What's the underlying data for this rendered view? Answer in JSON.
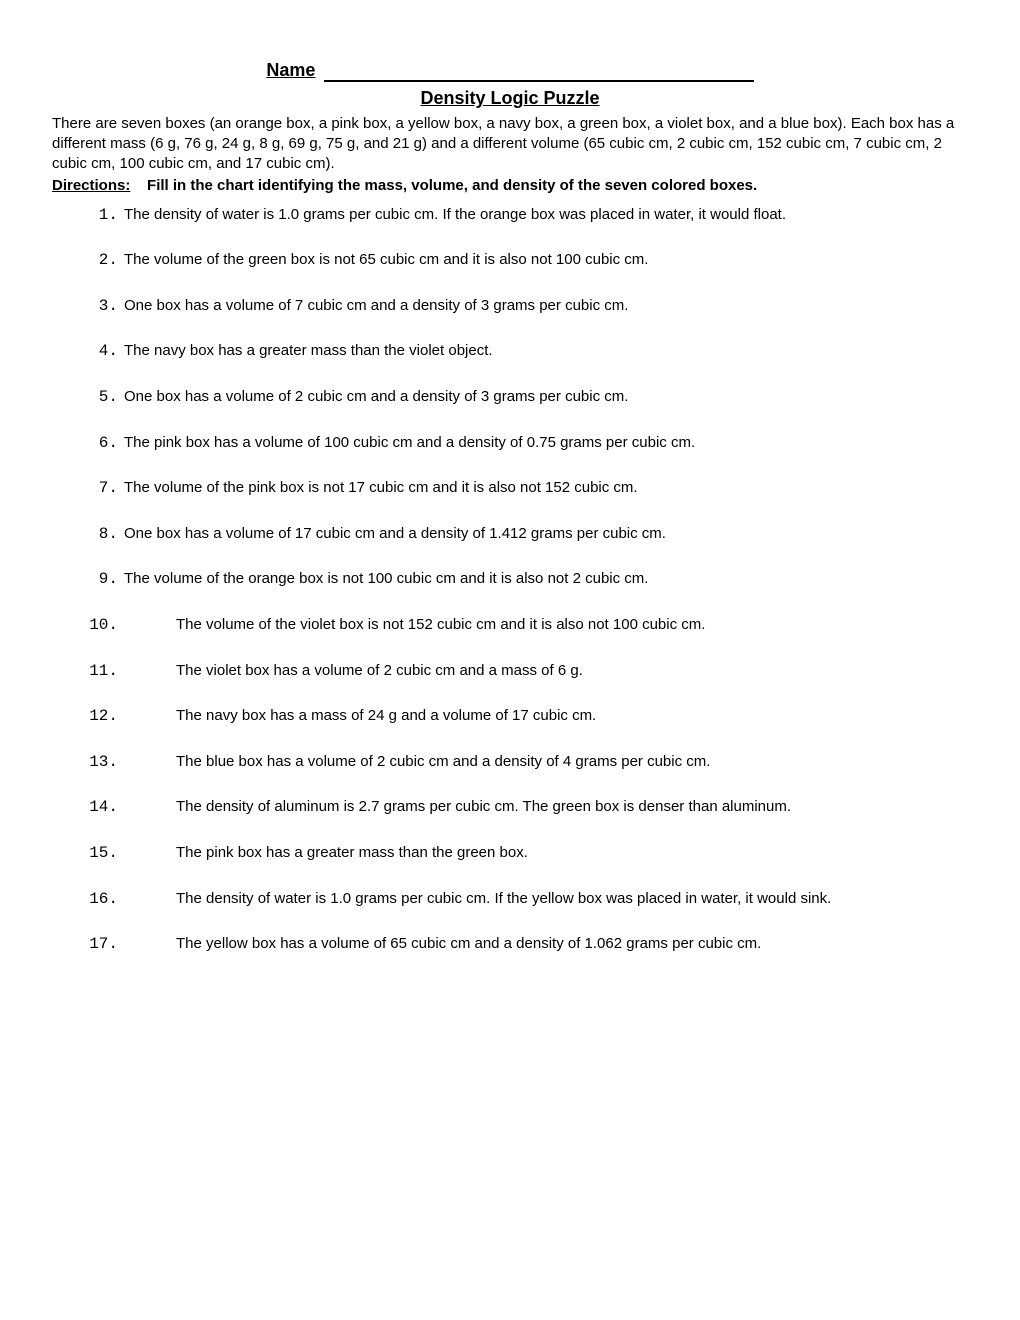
{
  "header": {
    "name_label": "Name",
    "title": "Density Logic Puzzle"
  },
  "intro": {
    "text": "There are seven boxes (an orange box, a pink box, a yellow box, a navy box, a green box, a violet box, and a blue box). Each box has a different mass (6 g, 76 g, 24 g, 8 g, 69 g, 75 g, and 21 g) and a different volume (65 cubic cm, 2 cubic cm, 152 cubic cm, 7 cubic cm, 2 cubic cm, 100 cubic cm, and 17 cubic cm)."
  },
  "directions": {
    "label": "Directions:",
    "text": "Fill in the chart identifying the mass, volume, and density of the seven colored boxes."
  },
  "clues": [
    {
      "n": "1.",
      "text": "The density of water is 1.0 grams per cubic cm. If the orange box was placed in water, it would float."
    },
    {
      "n": "2.",
      "text": "The volume of the green box  is not 65 cubic cm and it is also not 100 cubic cm."
    },
    {
      "n": "3.",
      "text": "One box has a volume of 7 cubic cm and a density of 3 grams per cubic cm."
    },
    {
      "n": "4.",
      "text": "The navy box has a greater mass than the violet object."
    },
    {
      "n": "5.",
      "text": "One box has a volume of 2 cubic cm and a density of 3 grams per cubic cm."
    },
    {
      "n": "6.",
      "text": "The pink box has a volume of 100 cubic cm and a density of 0.75 grams per cubic cm."
    },
    {
      "n": "7.",
      "text": "The volume of the pink box is not 17 cubic cm and it is also not 152 cubic cm."
    },
    {
      "n": "8.",
      "text": "One box has a volume of 17 cubic cm and a density of 1.412 grams per cubic cm."
    },
    {
      "n": "9.",
      "text": "The volume of the orange box is not 100 cubic cm and it is also not 2 cubic cm."
    },
    {
      "n": "10.",
      "text": "The volume of the violet box is not 152 cubic cm and it is also not 100 cubic cm."
    },
    {
      "n": "11.",
      "text": "The violet box has a volume of 2 cubic cm and a mass of 6 g."
    },
    {
      "n": "12.",
      "text": "The navy box has a mass of 24 g and a volume of 17 cubic cm."
    },
    {
      "n": "13.",
      "text": "The blue box has a volume of 2 cubic cm and a density of 4 grams per cubic cm."
    },
    {
      "n": "14.",
      "text": "The density of aluminum is 2.7 grams per cubic cm. The green box is denser than aluminum."
    },
    {
      "n": "15.",
      "text": "The pink box has a greater mass than the green box."
    },
    {
      "n": "16.",
      "text": "The density of water is 1.0 grams per cubic cm. If the yellow box was placed in water, it would sink."
    },
    {
      "n": "17.",
      "text": "The yellow box has a volume of 65 cubic cm and a density of 1.062 grams per cubic cm."
    }
  ]
}
